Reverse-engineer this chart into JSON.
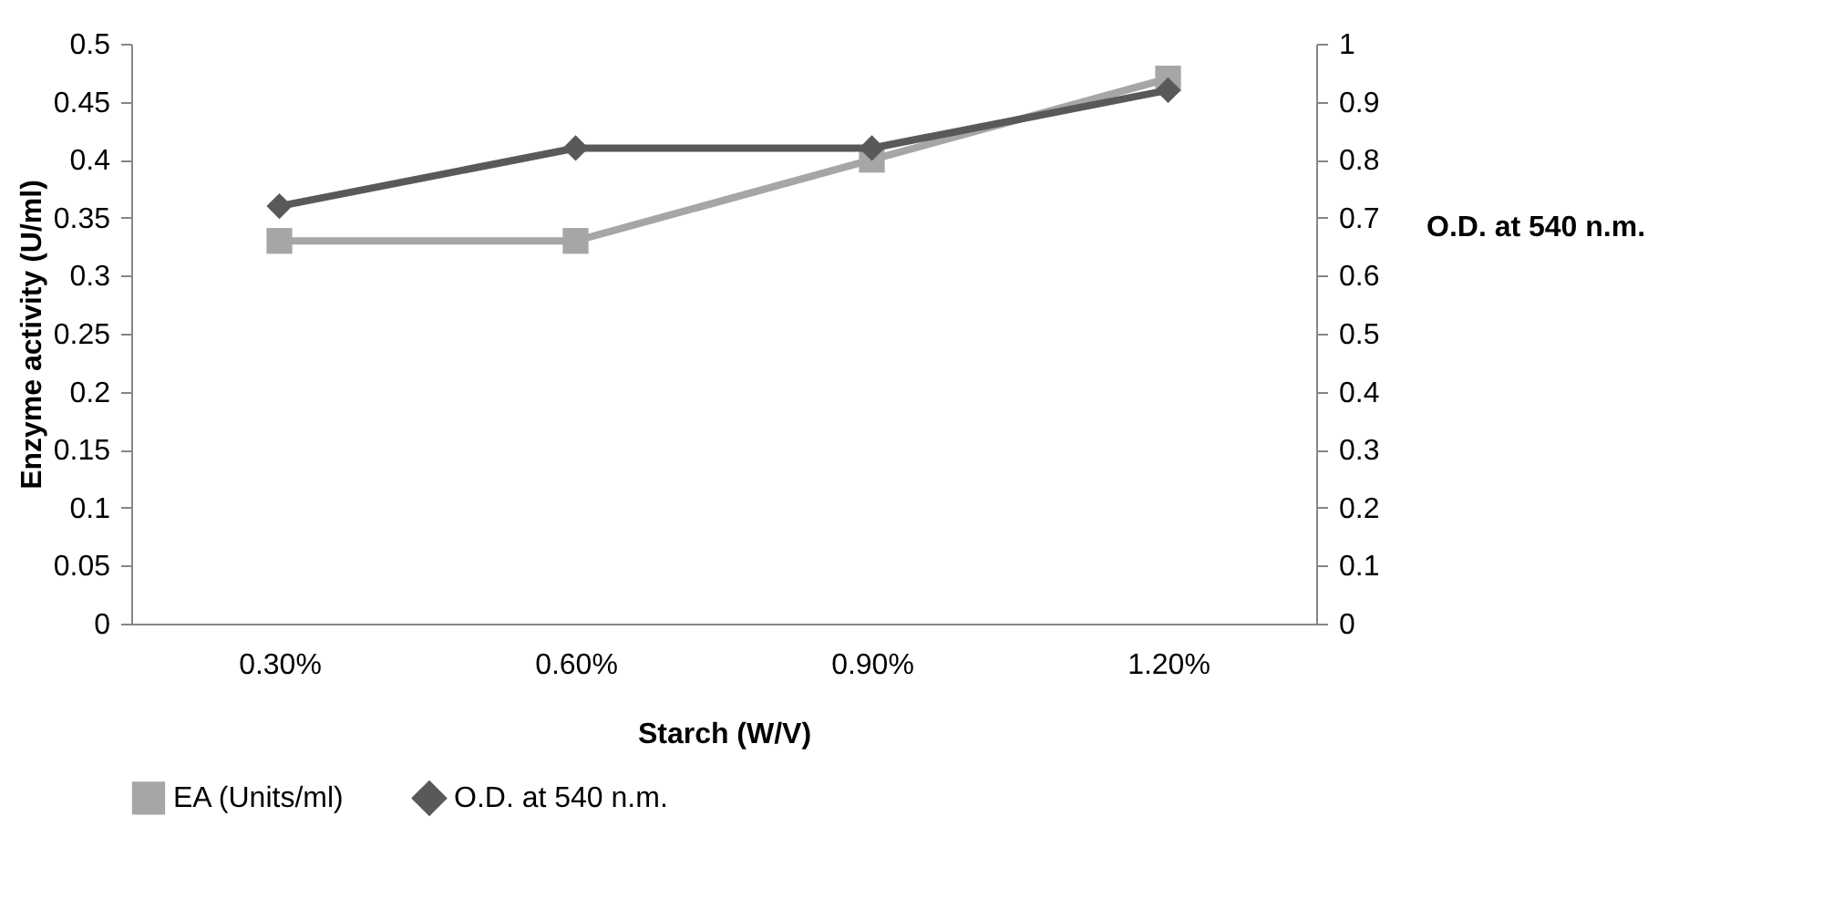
{
  "chart_data": {
    "type": "line",
    "xlabel": "Starch (W/V)",
    "ylabel": "Enzyme activity (U/ml)",
    "y2label": "O.D. at 540 n.m.",
    "categories": [
      "0.30%",
      "0.60%",
      "0.90%",
      "1.20%"
    ],
    "series": [
      {
        "name": "EA (Units/ml)",
        "color": "#a6a6a6",
        "marker": "square",
        "values": [
          0.33,
          0.33,
          0.4,
          0.47
        ]
      },
      {
        "name": "O.D. at 540 n.m.",
        "color": "#595959",
        "marker": "diamond",
        "axis": "y2",
        "values": [
          0.72,
          0.82,
          0.82,
          0.92
        ]
      }
    ],
    "ylim": [
      0,
      0.5
    ],
    "yticks": [
      0,
      0.05,
      0.1,
      0.15,
      0.2,
      0.25,
      0.3,
      0.35,
      0.4,
      0.45,
      0.5
    ],
    "y2lim": [
      0,
      1
    ],
    "y2ticks": [
      0,
      0.1,
      0.2,
      0.3,
      0.4,
      0.5,
      0.6,
      0.7,
      0.8,
      0.9,
      1
    ],
    "grid": false,
    "legend": "bottom"
  }
}
